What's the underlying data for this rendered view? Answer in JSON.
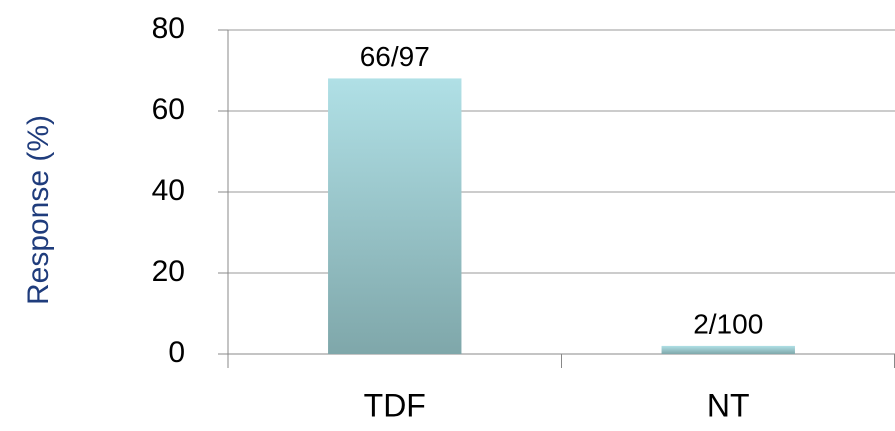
{
  "chart_data": {
    "type": "bar",
    "y_label": "Response (%)",
    "categories": [
      "TDF",
      "NT"
    ],
    "values": [
      68.04,
      2
    ],
    "value_labels": [
      "66/97",
      "2/100"
    ],
    "color": "#b0e0e6",
    "ylim": [
      0,
      80
    ],
    "yticks": [
      0,
      20,
      40,
      60,
      80
    ],
    "grid": true
  }
}
